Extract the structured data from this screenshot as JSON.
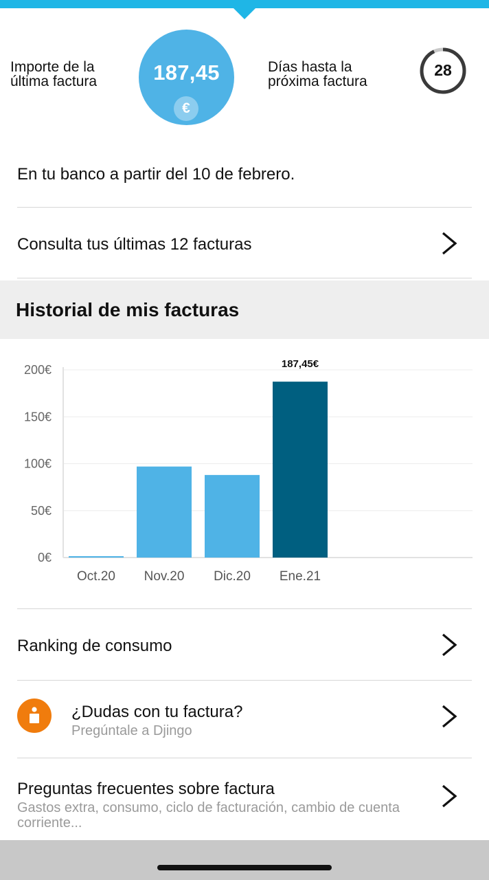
{
  "summary": {
    "last_bill_label": "Importe de la última factura",
    "last_bill_amount": "187,45",
    "currency_symbol": "€",
    "days_label": "Días hasta la próxima factura",
    "days_remaining": "28",
    "days_progress_fraction": 0.93
  },
  "bank_notice": "En tu banco a partir del 10 de febrero.",
  "rows": {
    "last_bills": "Consulta tus últimas 12 facturas",
    "ranking": "Ranking de consumo",
    "dudas_title": "¿Dudas con tu factura?",
    "dudas_subtitle": "Pregúntale a Djingo",
    "faq_title": "Preguntas frecuentes sobre factura",
    "faq_subtitle": "Gastos extra, consumo, ciclo de facturación, cambio de cuenta corriente..."
  },
  "history_section_title": "Historial de mis facturas",
  "colors": {
    "accent": "#1fb6e6",
    "bar": "#4fb3e6",
    "bar_highlight": "#005f80",
    "info_icon": "#f07c0d"
  },
  "chart_data": {
    "type": "bar",
    "categories": [
      "Oct.20",
      "Nov.20",
      "Dic.20",
      "Ene.21"
    ],
    "values": [
      1,
      97,
      88,
      187.45
    ],
    "highlighted_index": 3,
    "data_labels": [
      "",
      "",
      "",
      "187,45€"
    ],
    "yticks": [
      "0€",
      "50€",
      "100€",
      "150€",
      "200€"
    ],
    "ylim": [
      0,
      200
    ],
    "grid": true
  }
}
